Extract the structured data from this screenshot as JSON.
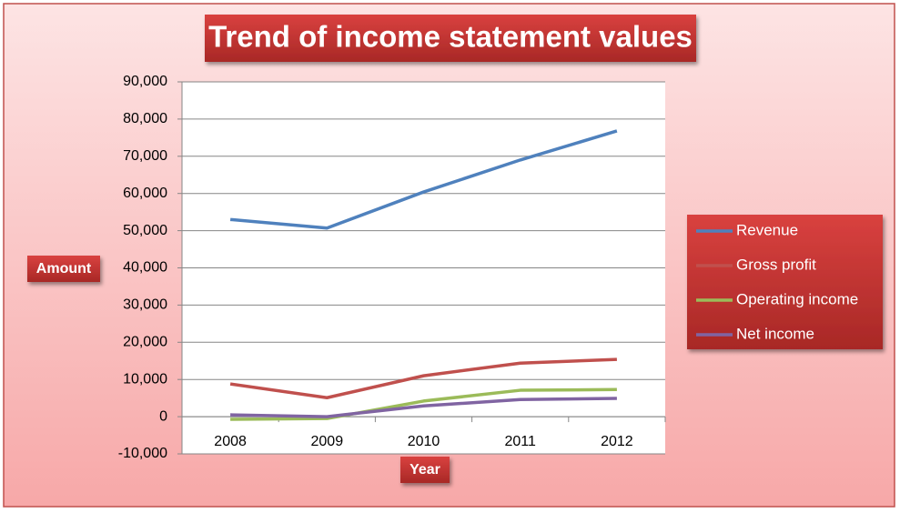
{
  "chart_data": {
    "type": "line",
    "title": "Trend of income statement values",
    "x_label": "Year",
    "y_label": "Amount",
    "categories": [
      "2008",
      "2009",
      "2010",
      "2011",
      "2012"
    ],
    "series": [
      {
        "name": "Revenue",
        "color": "#4f81bd",
        "values": [
          53000,
          50700,
          60400,
          69000,
          76800
        ]
      },
      {
        "name": "Gross profit",
        "color": "#c0504d",
        "values": [
          8800,
          5100,
          11000,
          14400,
          15400
        ]
      },
      {
        "name": "Operating income",
        "color": "#9bbb59",
        "values": [
          -700,
          -500,
          4200,
          7100,
          7300
        ]
      },
      {
        "name": "Net income",
        "color": "#8064a2",
        "values": [
          500,
          0,
          2900,
          4600,
          4900
        ]
      }
    ],
    "ylim": [
      -10000,
      90000
    ],
    "yticks": [
      {
        "value": -10000,
        "label": "-10,000"
      },
      0,
      {
        "value": 10000,
        "label": "10,000"
      },
      {
        "value": 20000,
        "label": "20,000"
      },
      {
        "value": 30000,
        "label": "30,000"
      },
      {
        "value": 40000,
        "label": "40,000"
      },
      {
        "value": 50000,
        "label": "50,000"
      },
      {
        "value": 60000,
        "label": "60,000"
      },
      {
        "value": 70000,
        "label": "70,000"
      },
      {
        "value": 80000,
        "label": "80,000"
      },
      {
        "value": 90000,
        "label": "90,000"
      }
    ],
    "grid": true,
    "legend": "right"
  }
}
